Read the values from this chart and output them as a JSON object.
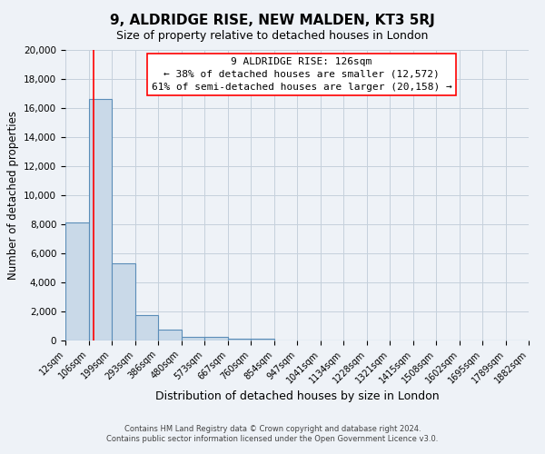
{
  "title": "9, ALDRIDGE RISE, NEW MALDEN, KT3 5RJ",
  "subtitle": "Size of property relative to detached houses in London",
  "xlabel": "Distribution of detached houses by size in London",
  "ylabel": "Number of detached properties",
  "bar_color": "#c9d9e8",
  "bar_edge_color": "#5b8db8",
  "red_line_x": 126,
  "bin_edges": [
    12,
    106,
    199,
    293,
    386,
    480,
    573,
    667,
    760,
    854,
    947,
    1041,
    1134,
    1228,
    1321,
    1415,
    1508,
    1602,
    1695,
    1789,
    1882
  ],
  "bar_heights": [
    8100,
    16600,
    5300,
    1750,
    750,
    280,
    280,
    130,
    130,
    0,
    0,
    0,
    0,
    0,
    0,
    0,
    0,
    0,
    0,
    0
  ],
  "tick_labels": [
    "12sqm",
    "106sqm",
    "199sqm",
    "293sqm",
    "386sqm",
    "480sqm",
    "573sqm",
    "667sqm",
    "760sqm",
    "854sqm",
    "947sqm",
    "1041sqm",
    "1134sqm",
    "1228sqm",
    "1321sqm",
    "1415sqm",
    "1508sqm",
    "1602sqm",
    "1695sqm",
    "1789sqm",
    "1882sqm"
  ],
  "ylim": [
    0,
    20000
  ],
  "yticks": [
    0,
    2000,
    4000,
    6000,
    8000,
    10000,
    12000,
    14000,
    16000,
    18000,
    20000
  ],
  "annotation_title": "9 ALDRIDGE RISE: 126sqm",
  "annotation_line1": "← 38% of detached houses are smaller (12,572)",
  "annotation_line2": "61% of semi-detached houses are larger (20,158) →",
  "footer1": "Contains HM Land Registry data © Crown copyright and database right 2024.",
  "footer2": "Contains public sector information licensed under the Open Government Licence v3.0.",
  "background_color": "#eef2f7",
  "plot_bg_color": "#eef2f7",
  "grid_color": "#c5d0dc"
}
